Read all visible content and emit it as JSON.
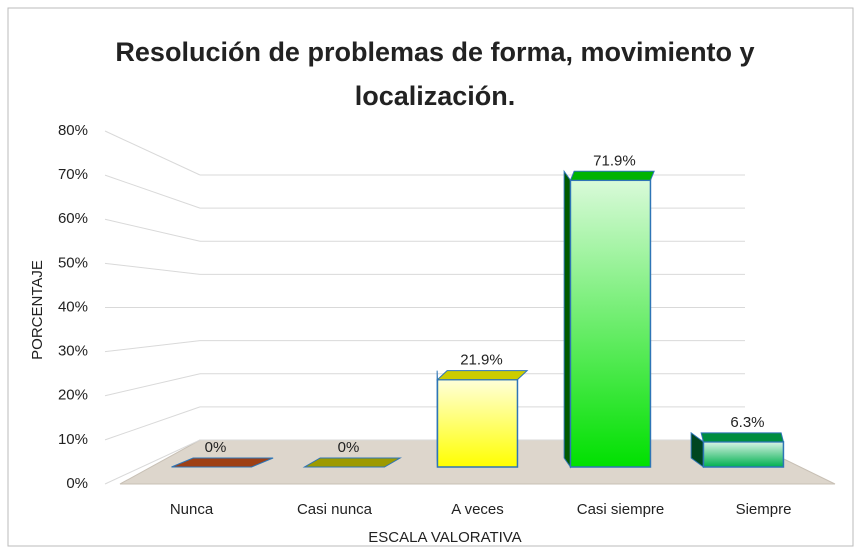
{
  "chart_data": {
    "type": "bar3d",
    "title": "Resolución de problemas de forma, movimiento y localización.",
    "x_label": "ESCALA VALORATIVA",
    "y_label": "PORCENTAJE",
    "categories": [
      "Nunca",
      "Casi nunca",
      "A veces",
      "Casi siempre",
      "Siempre"
    ],
    "values": [
      0,
      0,
      21.9,
      71.9,
      6.3
    ],
    "value_labels": [
      "0%",
      "0%",
      "21.9%",
      "71.9%",
      "6.3%"
    ],
    "colors": [
      "#c5501a",
      "#c4c000",
      "#ffff00",
      "#00e000",
      "#00b050"
    ],
    "ylim": [
      0,
      80
    ],
    "yticks": [
      {
        "value": 0,
        "label": "0%"
      },
      {
        "value": 10,
        "label": "10%"
      },
      {
        "value": 20,
        "label": "20%"
      },
      {
        "value": 30,
        "label": "30%"
      },
      {
        "value": 40,
        "label": "40%"
      },
      {
        "value": 50,
        "label": "50%"
      },
      {
        "value": 60,
        "label": "60%"
      },
      {
        "value": 70,
        "label": "70%"
      },
      {
        "value": 80,
        "label": "80%"
      }
    ],
    "grid": true
  }
}
